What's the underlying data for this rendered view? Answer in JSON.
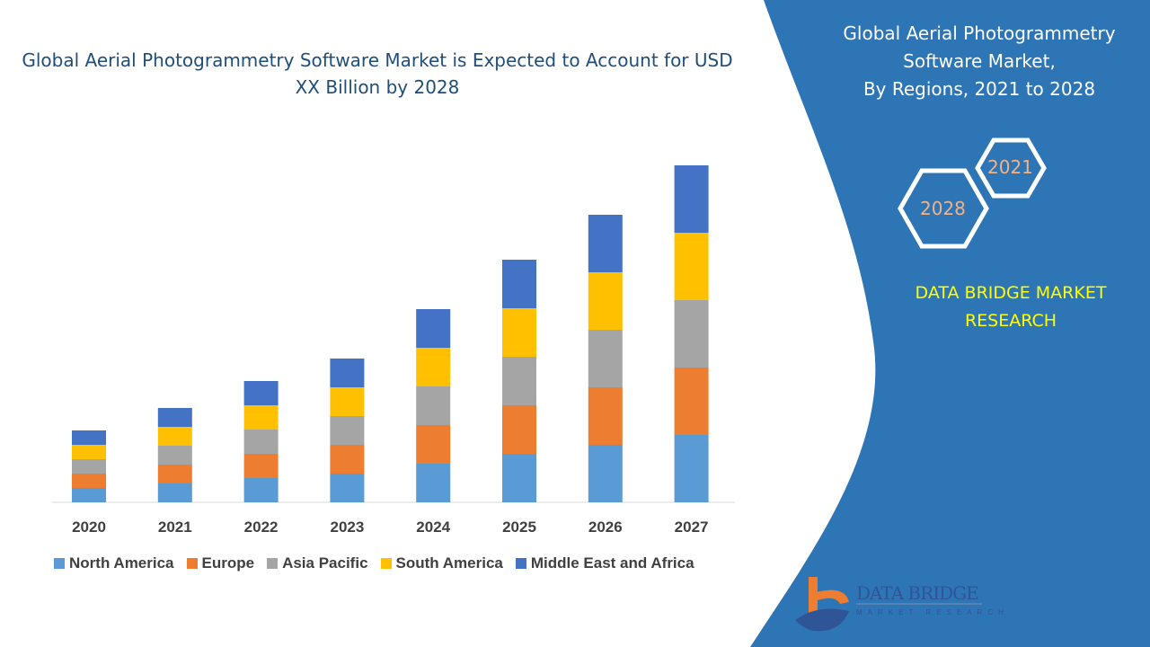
{
  "title": "Global Aerial Photogrammetry Software Market is Expected to Account for USD XX Billion by 2028",
  "side_panel": {
    "title_lines": [
      "Global Aerial Photogrammetry",
      "Software Market,",
      "By Regions, 2021 to 2028"
    ],
    "hex_years": [
      "2021",
      "2028"
    ],
    "brand_lines": [
      "DATA BRIDGE MARKET",
      "RESEARCH"
    ],
    "logo": {
      "name": "DATA BRIDGE",
      "tagline": "MARKET RESEARCH"
    },
    "panel_color": "#2E75B6",
    "brand_color": "#FFFF00"
  },
  "chart_data": {
    "type": "bar",
    "stacked": true,
    "categories": [
      "2020",
      "2021",
      "2022",
      "2023",
      "2024",
      "2025",
      "2026",
      "2027"
    ],
    "series": [
      {
        "name": "North America",
        "color": "#5B9BD5",
        "values": [
          1.6,
          2.1,
          2.7,
          3.2,
          4.3,
          5.4,
          6.4,
          7.5
        ]
      },
      {
        "name": "Europe",
        "color": "#ED7D31",
        "values": [
          1.6,
          2.1,
          2.7,
          3.2,
          4.3,
          5.4,
          6.4,
          7.5
        ]
      },
      {
        "name": "Asia Pacific",
        "color": "#A5A5A5",
        "values": [
          1.6,
          2.1,
          2.7,
          3.2,
          4.3,
          5.4,
          6.4,
          7.5
        ]
      },
      {
        "name": "South America",
        "color": "#FFC000",
        "values": [
          1.6,
          2.1,
          2.7,
          3.2,
          4.3,
          5.4,
          6.4,
          7.5
        ]
      },
      {
        "name": "Middle East and Africa",
        "color": "#4472C4",
        "values": [
          1.6,
          2.1,
          2.7,
          3.2,
          4.3,
          5.4,
          6.4,
          7.5
        ]
      }
    ],
    "y_axis_shown": false,
    "grid": false,
    "legend_position": "bottom"
  }
}
